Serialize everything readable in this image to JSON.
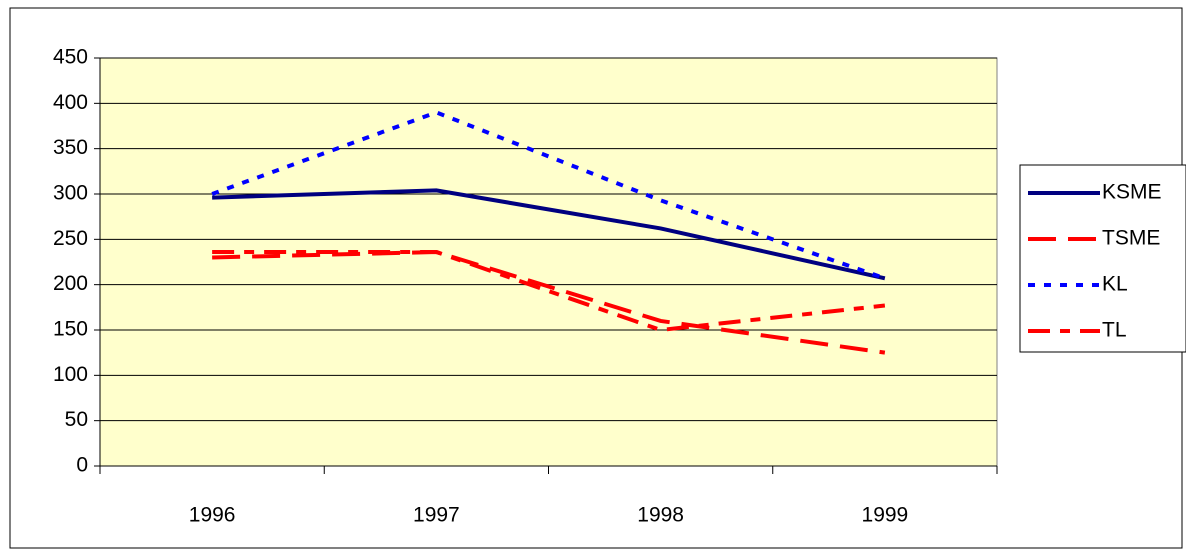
{
  "chart_data": {
    "type": "line",
    "categories": [
      "1996",
      "1997",
      "1998",
      "1999"
    ],
    "series": [
      {
        "name": "KSME",
        "color": "#000080",
        "dash": "solid",
        "values": [
          296,
          304,
          262,
          207
        ]
      },
      {
        "name": "TSME",
        "color": "#ff0000",
        "dash": "long",
        "values": [
          230,
          236,
          160,
          125
        ]
      },
      {
        "name": "KL",
        "color": "#0000ff",
        "dash": "dot",
        "values": [
          300,
          390,
          293,
          207
        ]
      },
      {
        "name": "TL",
        "color": "#ff0000",
        "dash": "dashdot",
        "values": [
          236,
          236,
          150,
          177
        ]
      }
    ],
    "ylim": [
      0,
      450
    ],
    "yticks": [
      0,
      50,
      100,
      150,
      200,
      250,
      300,
      350,
      400,
      450
    ],
    "grid": true,
    "legend": "right",
    "plot_background": "#ffffcc"
  }
}
